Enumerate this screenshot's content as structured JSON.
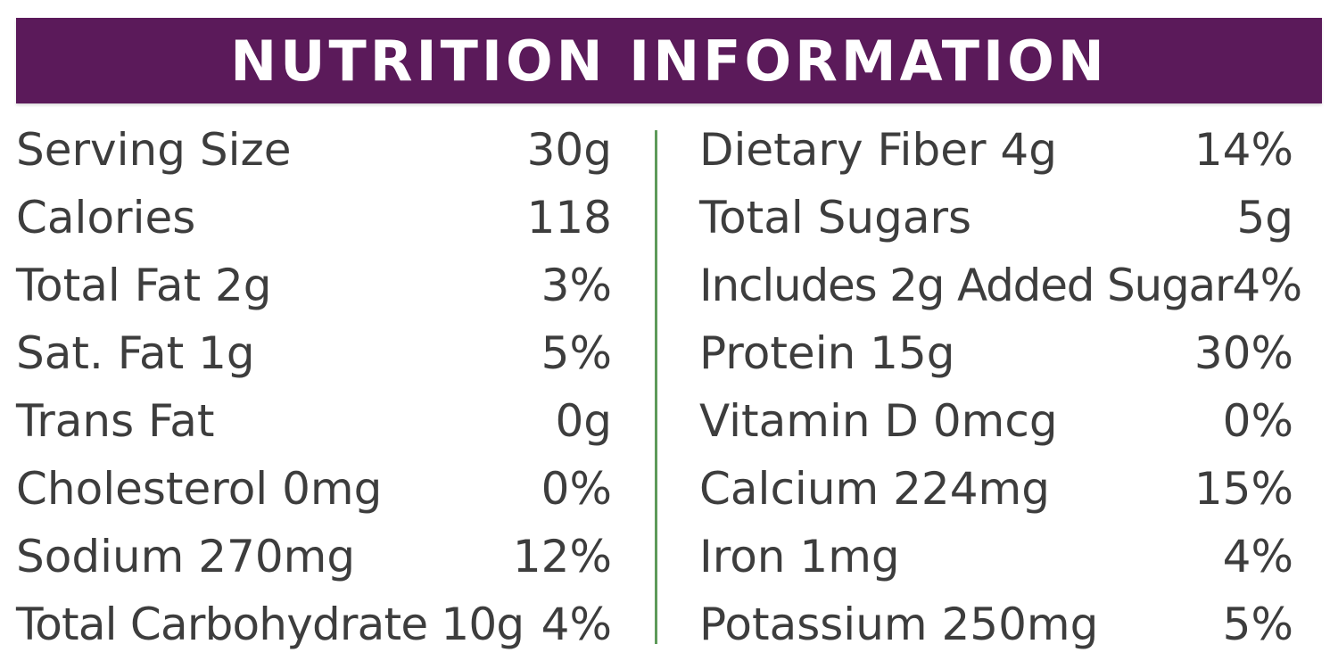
{
  "header": {
    "title": "NUTRITION INFORMATION",
    "background_color": "#5b1a5a",
    "text_color": "#ffffff"
  },
  "divider_color": "#5e9a5a",
  "left_column": [
    {
      "label": "Serving Size",
      "value": "30g"
    },
    {
      "label": "Calories",
      "value": "118"
    },
    {
      "label": "Total Fat 2g",
      "value": "3%"
    },
    {
      "label": "Sat. Fat 1g",
      "value": "5%"
    },
    {
      "label": "Trans Fat",
      "value": "0g"
    },
    {
      "label": "Cholesterol 0mg",
      "value": "0%"
    },
    {
      "label": "Sodium 270mg",
      "value": "12%"
    },
    {
      "label": "Total Carbohydrate 10g",
      "value": "4%"
    }
  ],
  "right_column": [
    {
      "label": "Dietary Fiber 4g",
      "value": "14%"
    },
    {
      "label": "Total Sugars",
      "value": "5g"
    },
    {
      "label": "Includes 2g Added Sugar",
      "value": "4%"
    },
    {
      "label": "Protein 15g",
      "value": "30%"
    },
    {
      "label": "Vitamin D 0mcg",
      "value": "0%"
    },
    {
      "label": "Calcium 224mg",
      "value": "15%"
    },
    {
      "label": "Iron 1mg",
      "value": "4%"
    },
    {
      "label": "Potassium 250mg",
      "value": "5%"
    }
  ]
}
